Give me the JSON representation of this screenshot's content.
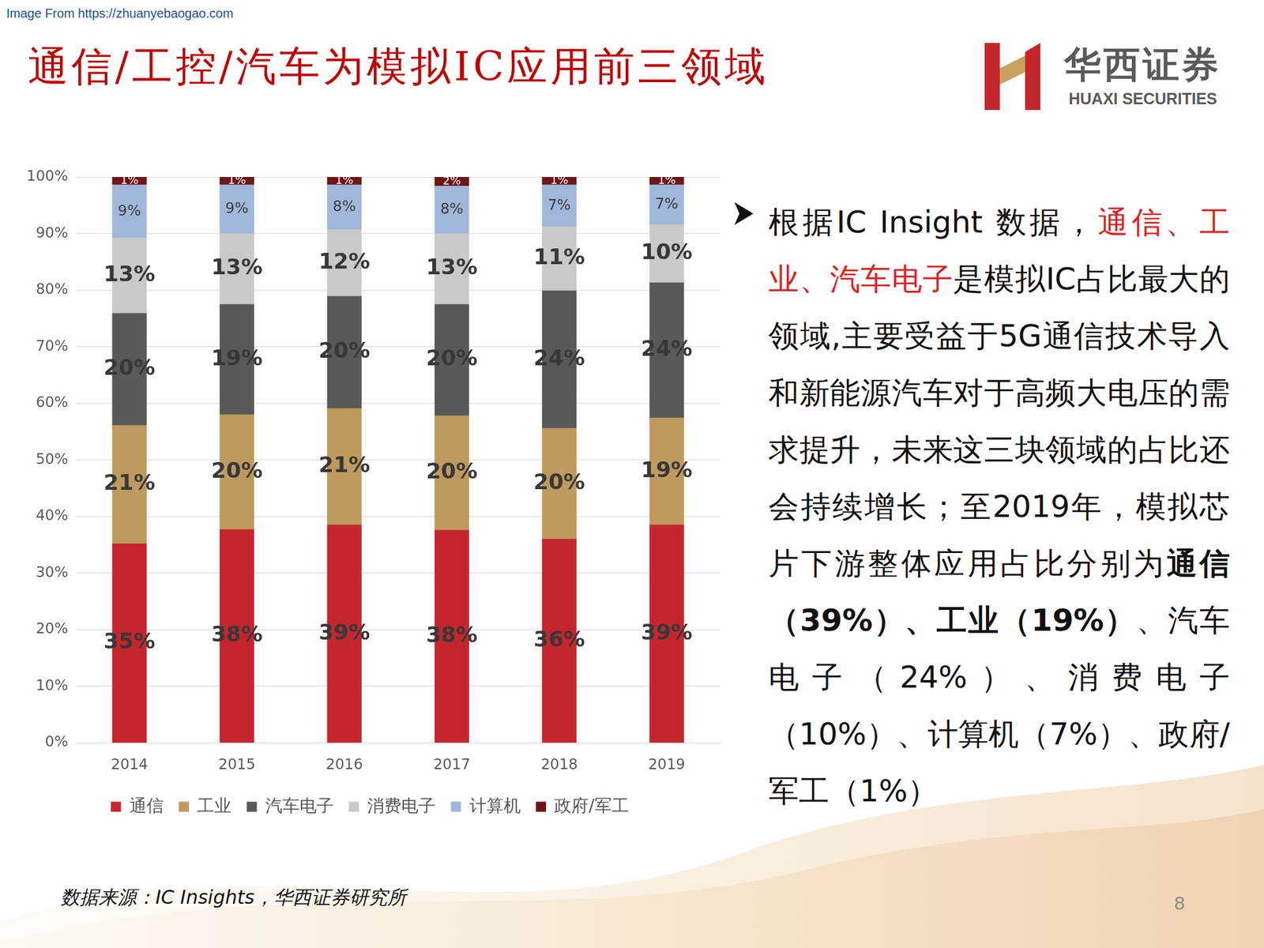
{
  "header": {
    "watermark": "Image From https://zhuanyebaogao.com",
    "title": "通信/工控/汽车为模拟IC应用前三领域",
    "logo_cn": "华西证券",
    "logo_en": "HUAXI SECURITIES"
  },
  "chart_data": {
    "type": "bar",
    "stacked": true,
    "categories": [
      "2014",
      "2015",
      "2016",
      "2017",
      "2018",
      "2019"
    ],
    "series": [
      {
        "name": "通信",
        "color": "#c4262e",
        "values": [
          35.2,
          37.7,
          38.5,
          37.6,
          36.0,
          38.5
        ],
        "value_labels": [
          "35%",
          "38%",
          "39%",
          "38%",
          "36%",
          "39%"
        ]
      },
      {
        "name": "工业",
        "color": "#bf9a5e",
        "values": [
          20.9,
          20.3,
          20.6,
          20.2,
          19.6,
          18.9
        ],
        "value_labels": [
          "21%",
          "20%",
          "21%",
          "20%",
          "20%",
          "19%"
        ]
      },
      {
        "name": "汽车电子",
        "color": "#595959",
        "values": [
          19.8,
          19.5,
          19.8,
          19.7,
          24.3,
          23.9
        ],
        "value_labels": [
          "20%",
          "19%",
          "20%",
          "20%",
          "24%",
          "24%"
        ]
      },
      {
        "name": "消费电子",
        "color": "#c9c9c9",
        "values": [
          13.3,
          12.5,
          11.8,
          12.5,
          11.3,
          10.3
        ],
        "value_labels": [
          "13%",
          "13%",
          "12%",
          "13%",
          "11%",
          "10%"
        ]
      },
      {
        "name": "计算机",
        "color": "#9fb7da",
        "values": [
          9.4,
          8.6,
          7.9,
          8.4,
          7.4,
          7.0
        ],
        "value_labels": [
          "9%",
          "9%",
          "8%",
          "8%",
          "7%",
          "7%"
        ]
      },
      {
        "name": "政府/军工",
        "color": "#6e1519",
        "values": [
          1.4,
          1.4,
          1.4,
          1.6,
          1.4,
          1.4
        ],
        "value_labels": [
          "1%",
          "1%",
          "1%",
          "2%",
          "1%",
          "1%"
        ]
      }
    ],
    "ylim": [
      0,
      100
    ],
    "yticks": [
      {
        "value": 0,
        "label": "0%"
      },
      {
        "value": 10,
        "label": "10%"
      },
      {
        "value": 20,
        "label": "20%"
      },
      {
        "value": 30,
        "label": "30%"
      },
      {
        "value": 40,
        "label": "40%"
      },
      {
        "value": 50,
        "label": "50%"
      },
      {
        "value": 60,
        "label": "60%"
      },
      {
        "value": 70,
        "label": "70%"
      },
      {
        "value": 80,
        "label": "80%"
      },
      {
        "value": 90,
        "label": "90%"
      },
      {
        "value": 100,
        "label": "100%"
      }
    ],
    "grid": true,
    "legend": "bottom",
    "data_labels": true
  },
  "bullet": [
    {
      "text": "根据IC Insight 数据，"
    },
    {
      "text": "通信、工业、汽车电子",
      "color": "#e02020"
    },
    {
      "text": "是模拟IC占比最大的领域,主要受益于5G通信技术导入和新能源汽车对于高频大电压的需求提升，未来这三块领域的占比还会持续增长；至2019年，模拟芯片下游整体应用占比分别为"
    },
    {
      "text": "通信（39%）、工业（19%）",
      "bold": true
    },
    {
      "text": "、汽车电子（24%）、消费电子（10%）、计算机（7%）、政府/军工（1%）"
    }
  ],
  "source": "数据来源：IC Insights，华西证券研究所",
  "page_number": 8
}
